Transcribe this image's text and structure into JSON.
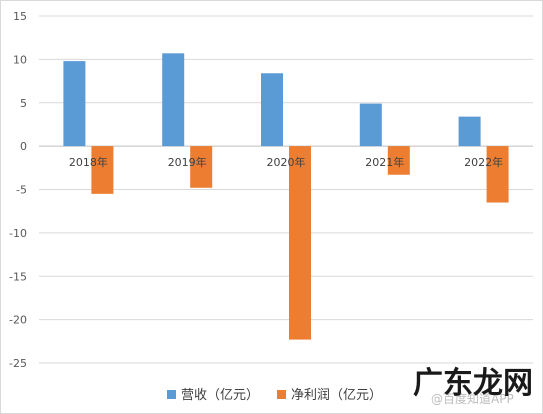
{
  "chart_data": {
    "type": "bar",
    "title": "",
    "xlabel": "",
    "ylabel": "",
    "categories": [
      "2018年",
      "2019年",
      "2020年",
      "2021年",
      "2022年"
    ],
    "series": [
      {
        "name": "营收（亿元）",
        "color": "#5b9bd5",
        "values": [
          9.8,
          10.7,
          8.4,
          4.9,
          3.4
        ]
      },
      {
        "name": "净利润（亿元）",
        "color": "#ed7d31",
        "values": [
          -5.5,
          -4.8,
          -22.3,
          -3.3,
          -6.5
        ]
      }
    ],
    "ylim": [
      -25,
      15
    ],
    "yticks": [
      "15",
      "10",
      "5",
      "0",
      "-5",
      "-10",
      "-15",
      "-20",
      "-25"
    ],
    "grid": true,
    "legend_position": "bottom"
  },
  "watermark": {
    "logo_text": "广东龙网",
    "source_text": "@百度知道APP"
  }
}
